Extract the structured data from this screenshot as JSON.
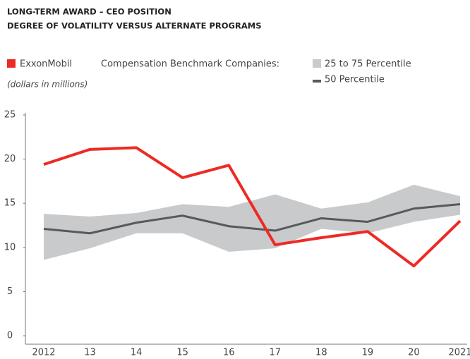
{
  "chart_data": {
    "type": "line",
    "title": "LONG-TERM AWARD – CEO POSITION",
    "subtitle": "DEGREE OF VOLATILITY VERSUS ALTERNATE PROGRAMS",
    "legend_label": "Compensation Benchmark Companies:",
    "y_label": "(dollars in millions)",
    "categories": [
      "2012",
      "13",
      "14",
      "15",
      "16",
      "17",
      "18",
      "19",
      "20",
      "2021"
    ],
    "series": [
      {
        "name": "ExxonMobil",
        "color": "#ee2a24",
        "values": [
          19.4,
          21.1,
          21.3,
          17.9,
          19.3,
          10.3,
          11.1,
          11.8,
          7.9,
          13.0
        ]
      },
      {
        "name": "50 Percentile",
        "color": "#58595b",
        "values": [
          12.1,
          11.6,
          12.8,
          13.6,
          12.4,
          11.9,
          13.3,
          12.9,
          14.4,
          14.9
        ]
      }
    ],
    "band": {
      "name": "25 to 75 Percentile",
      "color": "#c9cacc",
      "lower": [
        8.6,
        9.9,
        11.6,
        11.6,
        9.5,
        9.9,
        12.1,
        11.6,
        12.9,
        13.7
      ],
      "upper": [
        13.8,
        13.5,
        13.9,
        14.9,
        14.6,
        16.0,
        14.4,
        15.1,
        17.1,
        15.8
      ]
    },
    "ylim": [
      0,
      25
    ],
    "yticks": [
      0,
      5,
      10,
      15,
      20,
      25
    ]
  }
}
